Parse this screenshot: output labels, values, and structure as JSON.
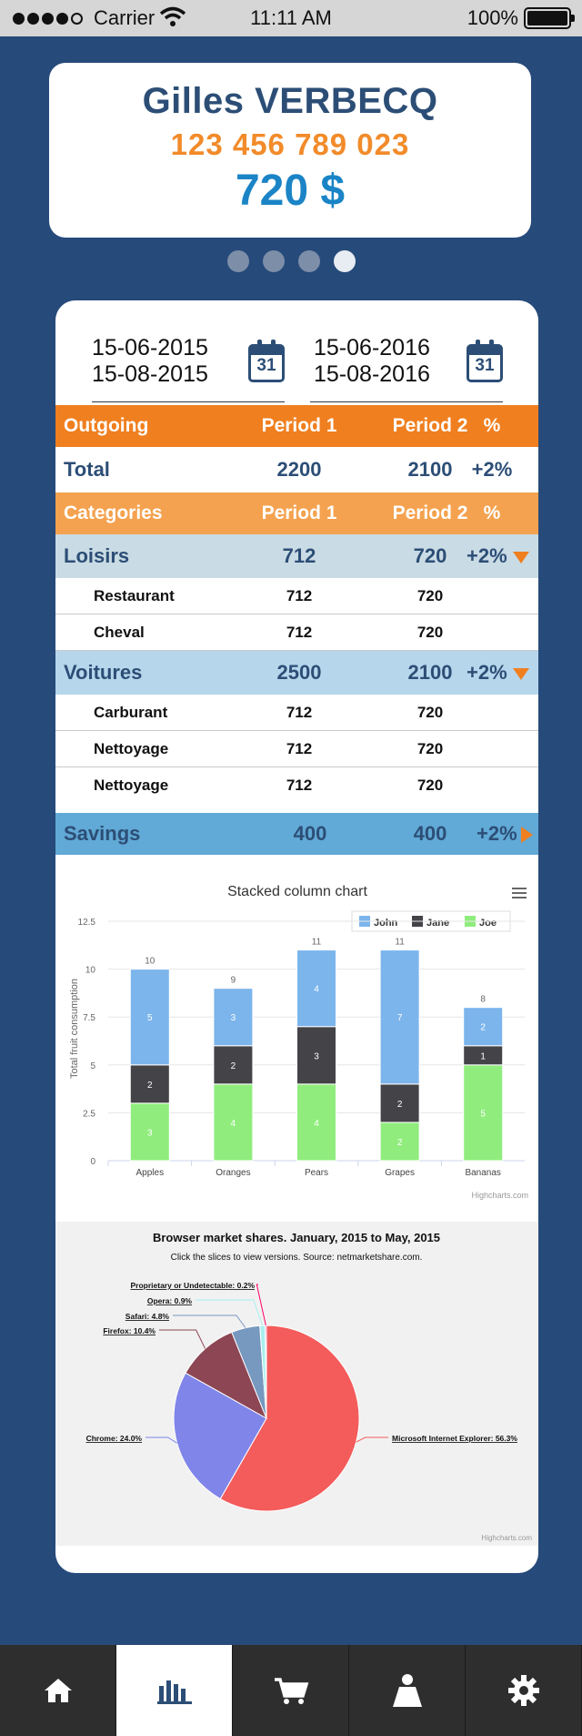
{
  "status_bar": {
    "carrier": "Carrier",
    "time": "11:11 AM",
    "battery": "100%"
  },
  "account": {
    "name": "Gilles VERBECQ",
    "number": "123 456 789 023",
    "amount": "720 $"
  },
  "pager": {
    "count": 4,
    "active_index": 3
  },
  "dates": {
    "period1": {
      "start": "15-06-2015",
      "end": "15-08-2015"
    },
    "period2": {
      "start": "15-06-2016",
      "end": "15-08-2016"
    },
    "calendar_day": "31"
  },
  "table": {
    "outgoing_header": {
      "label": "Outgoing",
      "p1": "Period 1",
      "p2": "Period 2",
      "pct": "%"
    },
    "total": {
      "label": "Total",
      "p1": "2200",
      "p2": "2100",
      "pct": "+2%"
    },
    "categories_header": {
      "label": "Categories",
      "p1": "Period 1",
      "p2": "Period 2",
      "pct": "%"
    },
    "loisirs": {
      "label": "Loisirs",
      "p1": "712",
      "p2": "720",
      "pct": "+2%"
    },
    "loisirs_items": [
      {
        "label": "Restaurant",
        "p1": "712",
        "p2": "720"
      },
      {
        "label": "Cheval",
        "p1": "712",
        "p2": "720"
      }
    ],
    "voitures": {
      "label": "Voitures",
      "p1": "2500",
      "p2": "2100",
      "pct": "+2%"
    },
    "voitures_items": [
      {
        "label": "Carburant",
        "p1": "712",
        "p2": "720"
      },
      {
        "label": "Nettoyage",
        "p1": "712",
        "p2": "720"
      },
      {
        "label": "Nettoyage",
        "p1": "712",
        "p2": "720"
      }
    ],
    "savings": {
      "label": "Savings",
      "p1": "400",
      "p2": "400",
      "pct": "+2%"
    }
  },
  "chart_data": [
    {
      "type": "bar",
      "stacked": true,
      "title": "Stacked column chart",
      "ylabel": "Total fruit consumption",
      "credits": "Highcharts.com",
      "categories": [
        "Apples",
        "Oranges",
        "Pears",
        "Grapes",
        "Bananas"
      ],
      "series": [
        {
          "name": "John",
          "color": "#7cb5ec",
          "values": [
            5,
            3,
            4,
            7,
            2
          ]
        },
        {
          "name": "Jane",
          "color": "#434348",
          "values": [
            2,
            2,
            3,
            2,
            1
          ]
        },
        {
          "name": "Joe",
          "color": "#90ed7d",
          "values": [
            3,
            4,
            4,
            2,
            5
          ]
        }
      ],
      "totals": [
        10,
        9,
        11,
        11,
        8
      ],
      "yticks": [
        "0",
        "2.5",
        "5",
        "7.5",
        "10",
        "12.5"
      ],
      "ylim": [
        0,
        12.5
      ],
      "legend": "top-right",
      "grid": true
    },
    {
      "type": "pie",
      "title": "Browser market shares. January, 2015 to May, 2015",
      "subtitle": "Click the slices to view versions. Source: netmarketshare.com.",
      "credits": "Highcharts.com",
      "slices": [
        {
          "name": "Microsoft Internet Explorer",
          "value": 56.3,
          "label": "Microsoft Internet Explorer: 56.3%",
          "color": "#f45b5b"
        },
        {
          "name": "Chrome",
          "value": 24.0,
          "label": "Chrome: 24.0%",
          "color": "#8085e9"
        },
        {
          "name": "Firefox",
          "value": 10.4,
          "label": "Firefox: 10.4%",
          "color": "#8d4654"
        },
        {
          "name": "Safari",
          "value": 4.8,
          "label": "Safari: 4.8%",
          "color": "#7798bf"
        },
        {
          "name": "Opera",
          "value": 0.9,
          "label": "Opera: 0.9%",
          "color": "#aaeeee"
        },
        {
          "name": "Proprietary or Undetectable",
          "value": 0.2,
          "label": "Proprietary or Undetectable: 0.2%",
          "color": "#ff0066"
        }
      ]
    }
  ],
  "tabs": [
    {
      "name": "home",
      "icon": "home-icon"
    },
    {
      "name": "stats",
      "icon": "bar-chart-icon",
      "active": true
    },
    {
      "name": "cart",
      "icon": "cart-icon"
    },
    {
      "name": "profile",
      "icon": "person-icon"
    },
    {
      "name": "settings",
      "icon": "gear-icon"
    }
  ]
}
